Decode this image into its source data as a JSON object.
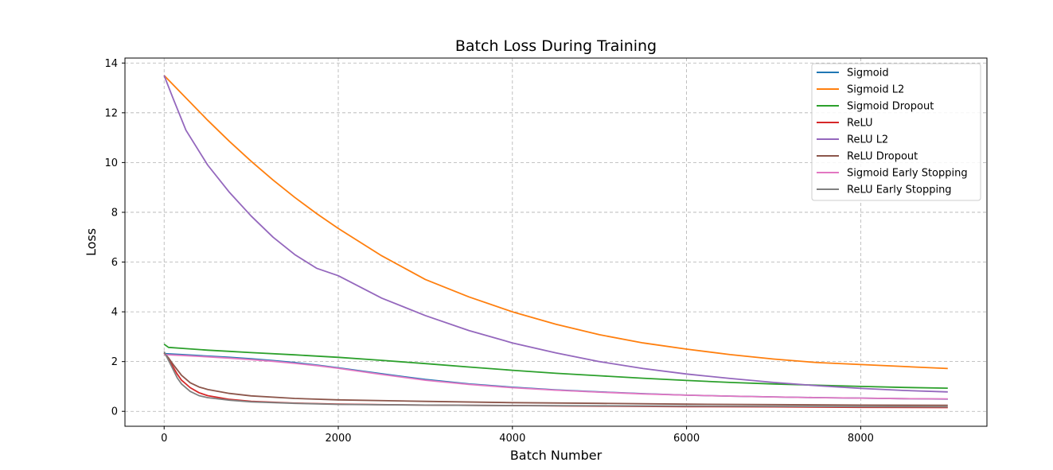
{
  "chart_data": {
    "type": "line",
    "title": "Batch Loss During Training",
    "xlabel": "Batch Number",
    "ylabel": "Loss",
    "xlim": [
      -450,
      9450
    ],
    "ylim": [
      -0.6,
      14.2
    ],
    "xticks": [
      0,
      2000,
      4000,
      6000,
      8000
    ],
    "yticks": [
      0,
      2,
      4,
      6,
      8,
      10,
      12,
      14
    ],
    "grid": true,
    "legend_position": "top-right",
    "series": [
      {
        "name": "Sigmoid",
        "color": "#1f77b4",
        "x": [
          0,
          250,
          500,
          750,
          1000,
          1250,
          1500,
          1750,
          2000,
          2500,
          3000,
          3500,
          4000,
          4500,
          5000,
          5500,
          6000,
          6500,
          7000,
          7500,
          8000,
          8500,
          9000
        ],
        "y": [
          2.32,
          2.27,
          2.22,
          2.17,
          2.11,
          2.04,
          1.96,
          1.86,
          1.75,
          1.51,
          1.28,
          1.1,
          0.97,
          0.86,
          0.78,
          0.71,
          0.65,
          0.61,
          0.58,
          0.55,
          0.53,
          0.51,
          0.49
        ]
      },
      {
        "name": "Sigmoid L2",
        "color": "#ff7f0e",
        "x": [
          0,
          250,
          500,
          750,
          1000,
          1250,
          1500,
          1750,
          2000,
          2500,
          3000,
          3500,
          4000,
          4500,
          5000,
          5500,
          6000,
          6500,
          7000,
          7500,
          8000,
          8500,
          9000
        ],
        "y": [
          13.5,
          12.6,
          11.7,
          10.85,
          10.05,
          9.3,
          8.6,
          7.95,
          7.35,
          6.25,
          5.3,
          4.6,
          4.0,
          3.5,
          3.08,
          2.75,
          2.5,
          2.28,
          2.1,
          1.96,
          1.88,
          1.8,
          1.72
        ]
      },
      {
        "name": "Sigmoid Dropout",
        "color": "#2ca02c",
        "x": [
          0,
          50,
          250,
          500,
          750,
          1000,
          1500,
          2000,
          2500,
          3000,
          3500,
          4000,
          4500,
          5000,
          5500,
          6000,
          6500,
          7000,
          7500,
          8000,
          8500,
          9000
        ],
        "y": [
          2.7,
          2.57,
          2.52,
          2.46,
          2.41,
          2.36,
          2.27,
          2.17,
          2.05,
          1.92,
          1.78,
          1.65,
          1.53,
          1.43,
          1.33,
          1.24,
          1.16,
          1.1,
          1.05,
          1.0,
          0.96,
          0.93
        ]
      },
      {
        "name": "ReLU",
        "color": "#d62728",
        "x": [
          0,
          50,
          100,
          150,
          200,
          300,
          400,
          500,
          750,
          1000,
          1500,
          2000,
          3000,
          4000,
          5000,
          6000,
          7000,
          8000,
          9000
        ],
        "y": [
          2.35,
          2.1,
          1.8,
          1.5,
          1.25,
          0.95,
          0.75,
          0.63,
          0.48,
          0.4,
          0.33,
          0.29,
          0.25,
          0.23,
          0.21,
          0.19,
          0.18,
          0.16,
          0.15
        ]
      },
      {
        "name": "ReLU L2",
        "color": "#9467bd",
        "x": [
          0,
          100,
          250,
          500,
          750,
          1000,
          1250,
          1500,
          1750,
          2000,
          2500,
          3000,
          3500,
          4000,
          4500,
          5000,
          5500,
          6000,
          6500,
          7000,
          7500,
          8000,
          8500,
          9000
        ],
        "y": [
          13.5,
          12.6,
          11.3,
          9.9,
          8.8,
          7.85,
          7.0,
          6.3,
          5.75,
          5.45,
          4.55,
          3.85,
          3.25,
          2.75,
          2.35,
          2.0,
          1.72,
          1.5,
          1.32,
          1.16,
          1.03,
          0.92,
          0.84,
          0.78
        ]
      },
      {
        "name": "ReLU Dropout",
        "color": "#8c564b",
        "x": [
          0,
          50,
          100,
          200,
          300,
          400,
          500,
          750,
          1000,
          1500,
          2000,
          3000,
          4000,
          5000,
          6000,
          7000,
          8000,
          9000
        ],
        "y": [
          2.35,
          2.15,
          1.9,
          1.45,
          1.15,
          0.98,
          0.88,
          0.72,
          0.62,
          0.52,
          0.46,
          0.4,
          0.35,
          0.32,
          0.29,
          0.27,
          0.25,
          0.24
        ]
      },
      {
        "name": "Sigmoid Early Stopping",
        "color": "#e377c2",
        "x": [
          0,
          250,
          500,
          750,
          1000,
          1250,
          1500,
          1750,
          2000,
          2500,
          3000,
          3500,
          4000,
          4500,
          5000,
          5500,
          6000,
          6500,
          7000,
          7500,
          8000,
          8500,
          9000
        ],
        "y": [
          2.28,
          2.24,
          2.19,
          2.14,
          2.08,
          2.01,
          1.93,
          1.84,
          1.73,
          1.48,
          1.25,
          1.08,
          0.95,
          0.85,
          0.77,
          0.7,
          0.65,
          0.61,
          0.58,
          0.55,
          0.53,
          0.51,
          0.5
        ]
      },
      {
        "name": "ReLU Early Stopping",
        "color": "#7f7f7f",
        "x": [
          0,
          50,
          100,
          150,
          200,
          300,
          400,
          500,
          750,
          1000,
          1500,
          2000,
          3000,
          4000,
          5000,
          6000,
          7000,
          8000,
          9000
        ],
        "y": [
          2.4,
          2.05,
          1.7,
          1.35,
          1.1,
          0.8,
          0.63,
          0.55,
          0.45,
          0.38,
          0.32,
          0.28,
          0.25,
          0.23,
          0.22,
          0.21,
          0.2,
          0.19,
          0.18
        ]
      }
    ]
  }
}
